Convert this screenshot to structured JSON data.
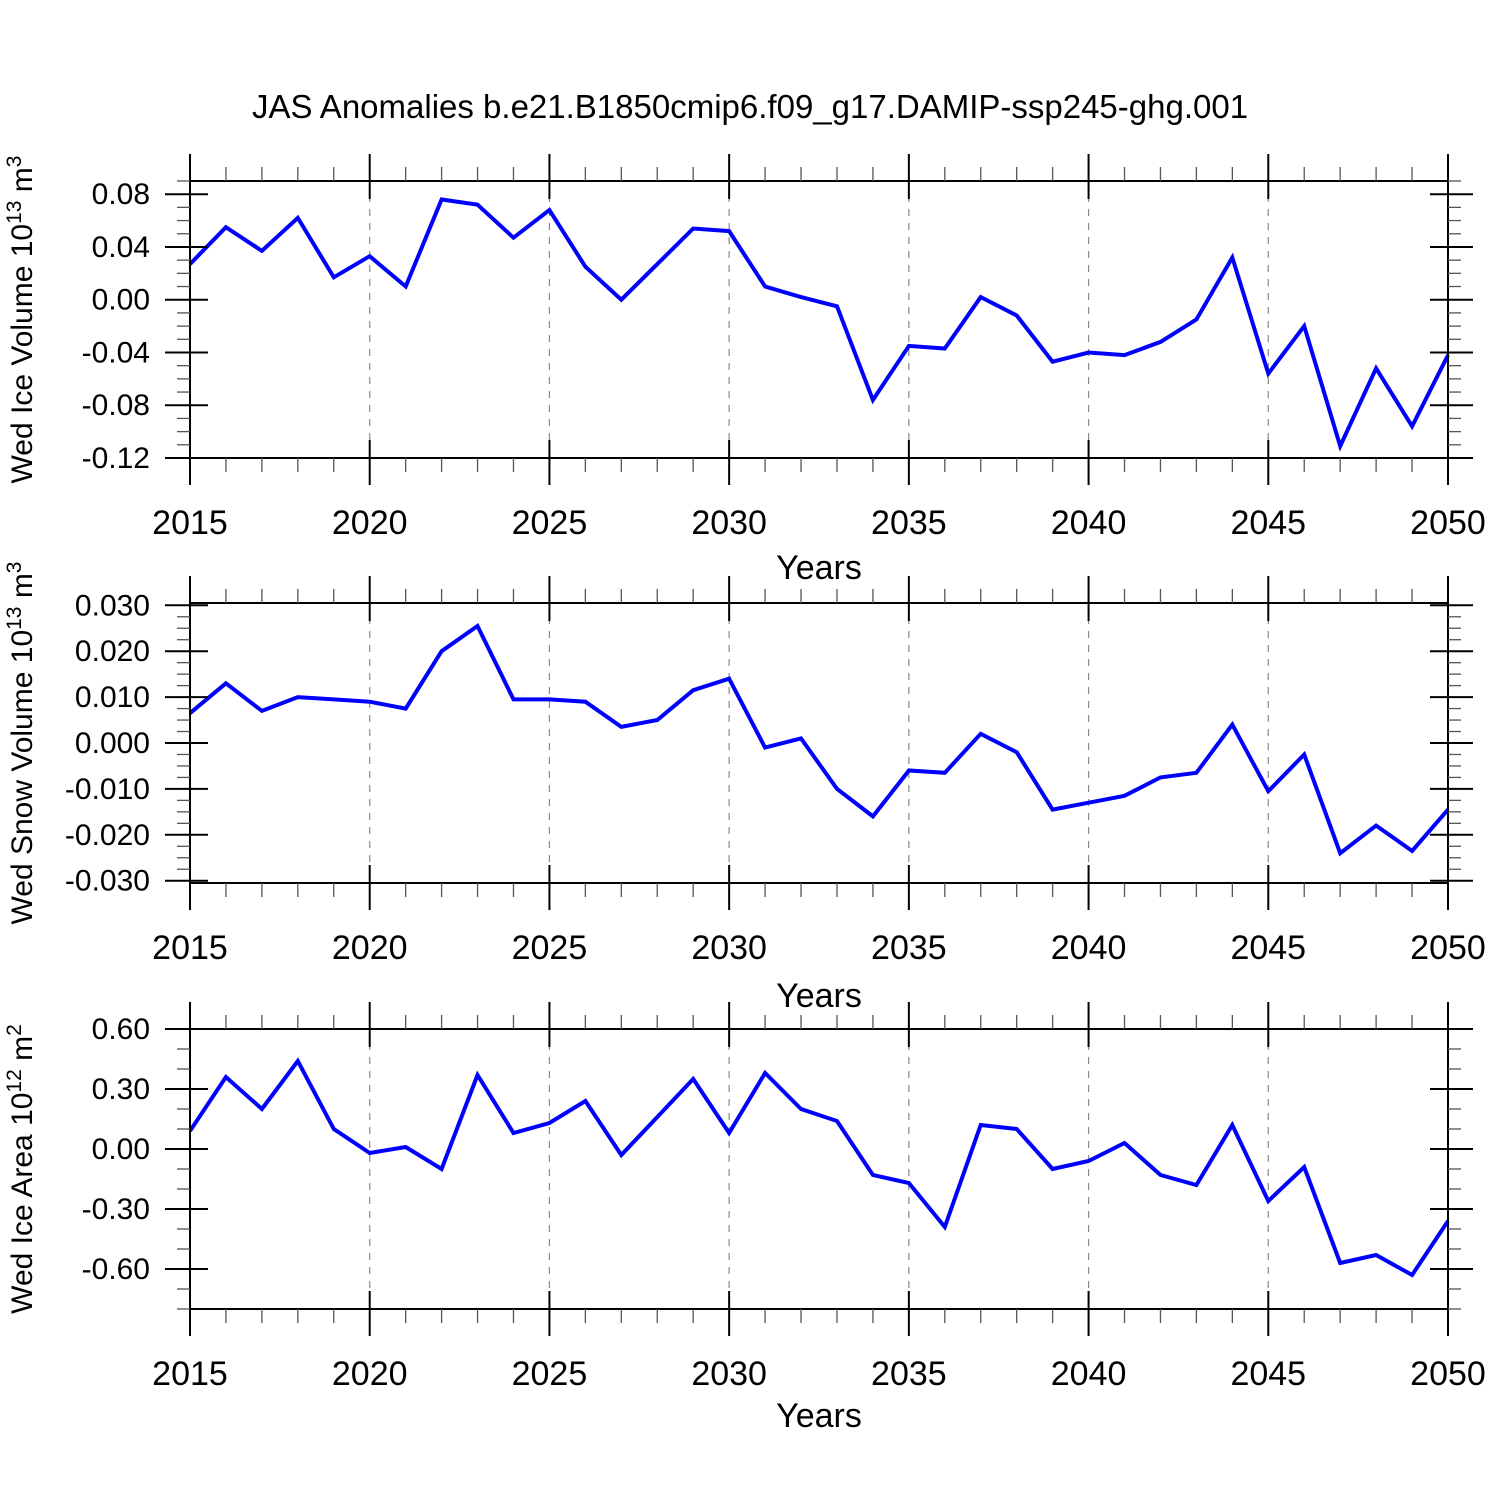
{
  "title": "JAS Anomalies b.e21.B1850cmip6.f09_g17.DAMIP-ssp245-ghg.001",
  "line_color": "#0000ff",
  "grid_color": "#888888",
  "axis_color": "#000000",
  "chart_data": [
    {
      "id": "ice-volume",
      "type": "line",
      "title": "",
      "xlabel": "Years",
      "ylabel": "Wed Ice Volume 10^13 m^3",
      "ylabel_parts": {
        "base": "Wed Ice Volume 10",
        "exponent": "13",
        "unit": " m",
        "unit_exponent": "3"
      },
      "x": [
        2015,
        2016,
        2017,
        2018,
        2019,
        2020,
        2021,
        2022,
        2023,
        2024,
        2025,
        2026,
        2027,
        2028,
        2029,
        2030,
        2031,
        2032,
        2033,
        2034,
        2035,
        2036,
        2037,
        2038,
        2039,
        2040,
        2041,
        2042,
        2043,
        2044,
        2045,
        2046,
        2047,
        2048,
        2049,
        2050
      ],
      "values": [
        0.027,
        0.055,
        0.037,
        0.062,
        0.017,
        0.033,
        0.01,
        0.076,
        0.072,
        0.047,
        0.068,
        0.025,
        0.0,
        0.027,
        0.054,
        0.052,
        0.01,
        0.002,
        -0.005,
        -0.076,
        -0.035,
        -0.037,
        0.002,
        -0.012,
        -0.047,
        -0.04,
        -0.042,
        -0.032,
        -0.015,
        0.032,
        -0.056,
        -0.02,
        -0.111,
        -0.052,
        -0.096,
        -0.042
      ],
      "ylim": [
        -0.12,
        0.09
      ],
      "yticks": [
        0.08,
        0.04,
        0.0,
        -0.04,
        -0.08,
        -0.12
      ],
      "ytick_labels": [
        "0.08",
        "0.04",
        "0.00",
        "-0.04",
        "-0.08",
        "-0.12"
      ],
      "y_minor_step": 0.01,
      "xticks": [
        2015,
        2020,
        2025,
        2030,
        2035,
        2040,
        2045,
        2050
      ],
      "xtick_labels": [
        "2015",
        "2020",
        "2025",
        "2030",
        "2035",
        "2040",
        "2045",
        "2050"
      ],
      "x_minor_step": 1,
      "gridlines_x": [
        2020,
        2025,
        2030,
        2035,
        2040,
        2045
      ],
      "grid": "dashed-vertical",
      "legend": "none"
    },
    {
      "id": "snow-volume",
      "type": "line",
      "title": "",
      "xlabel": "Years",
      "ylabel": "Wed Snow Volume 10^13 m^3",
      "ylabel_parts": {
        "base": "Wed Snow Volume 10",
        "exponent": "13",
        "unit": " m",
        "unit_exponent": "3"
      },
      "x": [
        2015,
        2016,
        2017,
        2018,
        2019,
        2020,
        2021,
        2022,
        2023,
        2024,
        2025,
        2026,
        2027,
        2028,
        2029,
        2030,
        2031,
        2032,
        2033,
        2034,
        2035,
        2036,
        2037,
        2038,
        2039,
        2040,
        2041,
        2042,
        2043,
        2044,
        2045,
        2046,
        2047,
        2048,
        2049,
        2050
      ],
      "values": [
        0.0065,
        0.013,
        0.007,
        0.01,
        0.0095,
        0.009,
        0.0075,
        0.02,
        0.0255,
        0.0095,
        0.0095,
        0.009,
        0.0035,
        0.005,
        0.0115,
        0.014,
        -0.001,
        0.001,
        -0.01,
        -0.016,
        -0.006,
        -0.0065,
        0.002,
        -0.002,
        -0.0145,
        -0.013,
        -0.0115,
        -0.0075,
        -0.0065,
        0.004,
        -0.0105,
        -0.0025,
        -0.024,
        -0.018,
        -0.0235,
        -0.0145
      ],
      "ylim": [
        -0.0305,
        0.0305
      ],
      "yticks": [
        0.03,
        0.02,
        0.01,
        0.0,
        -0.01,
        -0.02,
        -0.03
      ],
      "ytick_labels": [
        "0.030",
        "0.020",
        "0.010",
        "0.000",
        "-0.010",
        "-0.020",
        "-0.030"
      ],
      "y_minor_step": 0.0025,
      "xticks": [
        2015,
        2020,
        2025,
        2030,
        2035,
        2040,
        2045,
        2050
      ],
      "xtick_labels": [
        "2015",
        "2020",
        "2025",
        "2030",
        "2035",
        "2040",
        "2045",
        "2050"
      ],
      "x_minor_step": 1,
      "gridlines_x": [
        2020,
        2025,
        2030,
        2035,
        2040,
        2045
      ],
      "grid": "dashed-vertical",
      "legend": "none"
    },
    {
      "id": "ice-area",
      "type": "line",
      "title": "",
      "xlabel": "Years",
      "ylabel": "Wed Ice Area 10^12 m^2",
      "ylabel_parts": {
        "base": "Wed Ice Area 10",
        "exponent": "12",
        "unit": " m",
        "unit_exponent": "2"
      },
      "x": [
        2015,
        2016,
        2017,
        2018,
        2019,
        2020,
        2021,
        2022,
        2023,
        2024,
        2025,
        2026,
        2027,
        2028,
        2029,
        2030,
        2031,
        2032,
        2033,
        2034,
        2035,
        2036,
        2037,
        2038,
        2039,
        2040,
        2041,
        2042,
        2043,
        2044,
        2045,
        2046,
        2047,
        2048,
        2049,
        2050
      ],
      "values": [
        0.09,
        0.36,
        0.2,
        0.44,
        0.1,
        -0.02,
        0.01,
        -0.1,
        0.37,
        0.08,
        0.13,
        0.24,
        -0.03,
        0.16,
        0.35,
        0.08,
        0.38,
        0.2,
        0.14,
        -0.13,
        -0.17,
        -0.39,
        0.12,
        0.1,
        -0.1,
        -0.06,
        0.03,
        -0.13,
        -0.18,
        0.12,
        -0.26,
        -0.09,
        -0.57,
        -0.53,
        -0.63,
        -0.36
      ],
      "ylim": [
        -0.8,
        0.6
      ],
      "yticks": [
        0.6,
        0.3,
        0.0,
        -0.3,
        -0.6
      ],
      "ytick_labels": [
        "0.60",
        "0.30",
        "0.00",
        "-0.30",
        "-0.60"
      ],
      "y_minor_step": 0.1,
      "xticks": [
        2015,
        2020,
        2025,
        2030,
        2035,
        2040,
        2045,
        2050
      ],
      "xtick_labels": [
        "2015",
        "2020",
        "2025",
        "2030",
        "2035",
        "2040",
        "2045",
        "2050"
      ],
      "x_minor_step": 1,
      "gridlines_x": [
        2020,
        2025,
        2030,
        2035,
        2040,
        2045
      ],
      "grid": "dashed-vertical",
      "legend": "none"
    }
  ]
}
